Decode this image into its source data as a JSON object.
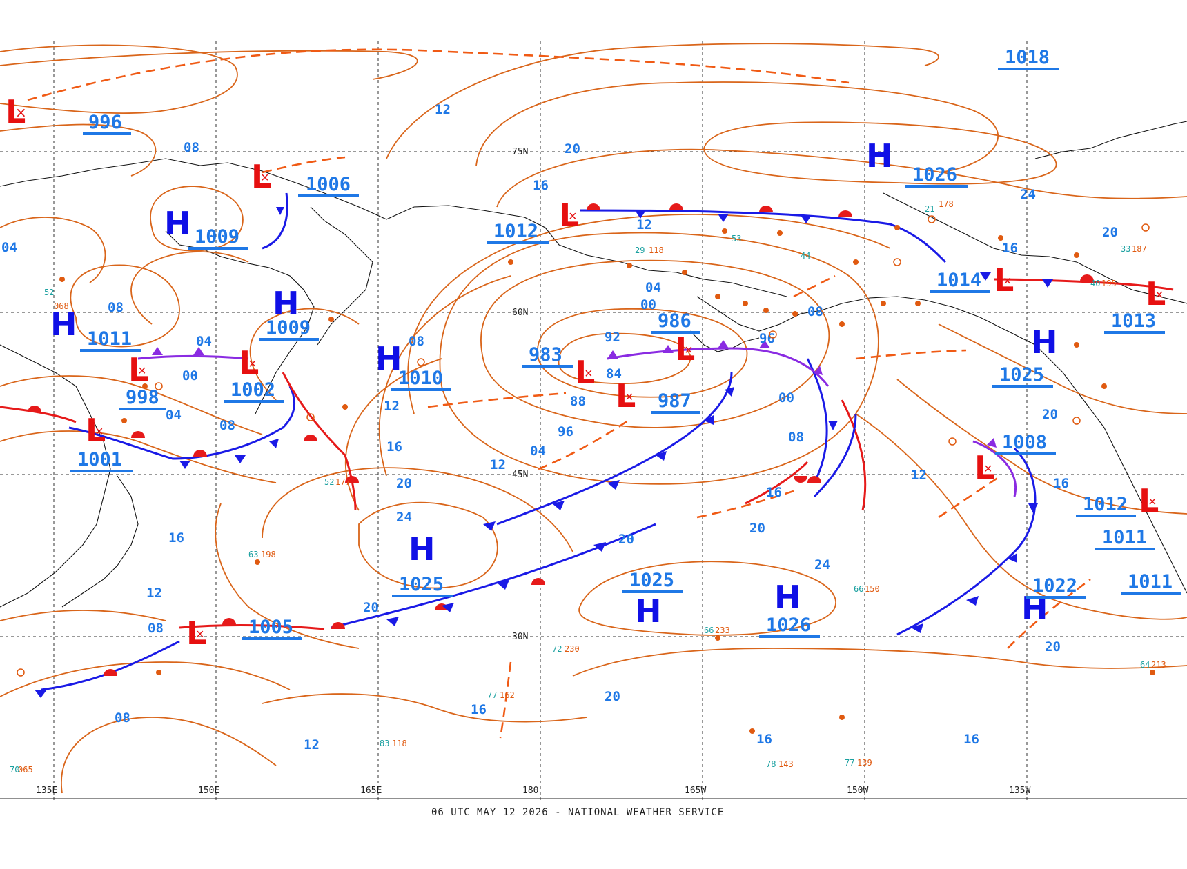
{
  "footer": "06 UTC MAY 12 2026 - NATIONAL WEATHER SERVICE",
  "colors": {
    "isobar": "#d9651a",
    "isobar_label": "#1f78e6",
    "high": "#1010e6",
    "low": "#e61010",
    "cold_front": "#1a1ae6",
    "warm_front": "#e61a1a",
    "occluded_front": "#8a2be2",
    "trough": "#f05a14"
  },
  "latitude_labels": [
    "75N",
    "60N",
    "45N",
    "30N"
  ],
  "longitude_labels": [
    "135E",
    "150E",
    "165E",
    "180",
    "165W",
    "150W",
    "135W"
  ],
  "pressure_centers": [
    {
      "type": "L",
      "value": "996"
    },
    {
      "type": "L",
      "value": "1006"
    },
    {
      "type": "H",
      "value": "1009"
    },
    {
      "type": "H",
      "value": "1009"
    },
    {
      "type": "H",
      "value": "1011"
    },
    {
      "type": "L",
      "value": "998"
    },
    {
      "type": "L",
      "value": "1002"
    },
    {
      "type": "L",
      "value": "1001"
    },
    {
      "type": "H",
      "value": "1010"
    },
    {
      "type": "L",
      "value": "1012"
    },
    {
      "type": "L",
      "value": "983"
    },
    {
      "type": "L",
      "value": "986"
    },
    {
      "type": "L",
      "value": "987"
    },
    {
      "type": "H",
      "value": "1026"
    },
    {
      "type": "H",
      "value": "1018"
    },
    {
      "type": "L",
      "value": "1014"
    },
    {
      "type": "L",
      "value": "1013"
    },
    {
      "type": "H",
      "value": "1025"
    },
    {
      "type": "L",
      "value": "1008"
    },
    {
      "type": "H",
      "value": "1025"
    },
    {
      "type": "H",
      "value": "1025"
    },
    {
      "type": "H",
      "value": "1026"
    },
    {
      "type": "H",
      "value": "1022"
    },
    {
      "type": "L",
      "value": "1012"
    },
    {
      "type": "L",
      "value": "1011"
    },
    {
      "type": "L",
      "value": "1011"
    },
    {
      "type": "L",
      "value": "1005"
    }
  ],
  "isobar_labels": [
    "08",
    "12",
    "20",
    "16",
    "04",
    "08",
    "24",
    "12",
    "16",
    "20",
    "04",
    "00",
    "04",
    "00",
    "08",
    "04",
    "92",
    "84",
    "88",
    "96",
    "04",
    "12",
    "08",
    "96",
    "08",
    "00",
    "08",
    "16",
    "20",
    "20",
    "24",
    "12",
    "16",
    "20",
    "24",
    "16",
    "12",
    "08",
    "20",
    "16",
    "12",
    "20",
    "20",
    "16",
    "16",
    "12",
    "16",
    "20",
    "08"
  ]
}
